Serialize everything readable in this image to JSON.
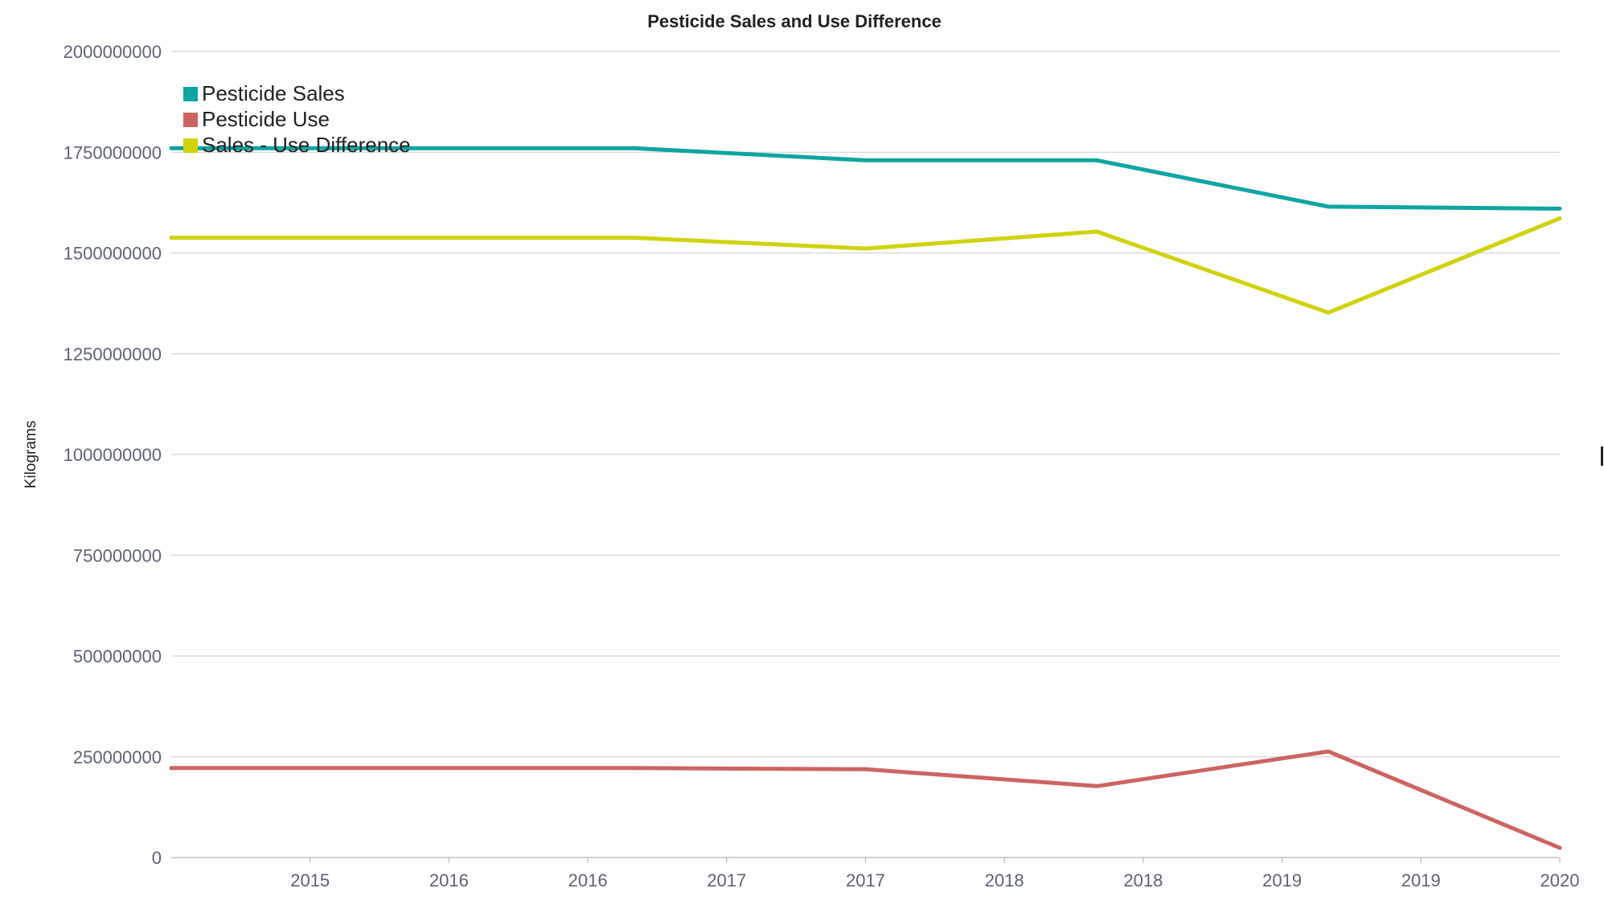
{
  "chart_data": {
    "type": "line",
    "title": "Pesticide Sales and Use Difference",
    "xlabel": "",
    "ylabel": "Kilograms",
    "x_ticks": [
      "2015",
      "2016",
      "2016",
      "2017",
      "2017",
      "2018",
      "2018",
      "2019",
      "2019",
      "2020"
    ],
    "y_ticks": [
      "0",
      "250000000",
      "500000000",
      "750000000",
      "1000000000",
      "1250000000",
      "1500000000",
      "1750000000",
      "2000000000"
    ],
    "ylim": [
      0,
      2000000000
    ],
    "xlim": [
      2014,
      2020
    ],
    "x": [
      2014,
      2015,
      2016,
      2017,
      2018,
      2019,
      2020
    ],
    "series": [
      {
        "name": "Pesticide Sales",
        "color": "#0ea5a1",
        "values": [
          1760000000,
          1760000000,
          1760000000,
          1730000000,
          1730000000,
          1615000000,
          1610000000
        ]
      },
      {
        "name": "Pesticide Use",
        "color": "#cd6464",
        "values": [
          222000000,
          222000000,
          222000000,
          219000000,
          177000000,
          263000000,
          24000000
        ]
      },
      {
        "name": "Sales - Use Difference",
        "color": "#cfd30b",
        "values": [
          1538000000,
          1538000000,
          1538000000,
          1511000000,
          1553000000,
          1352000000,
          1586000000
        ]
      }
    ],
    "grid": true,
    "legend_position": "top-left"
  }
}
